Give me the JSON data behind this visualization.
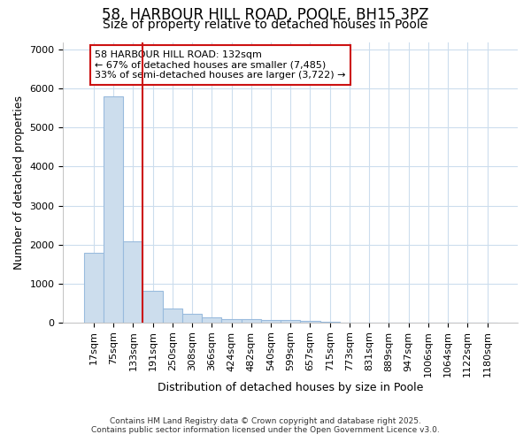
{
  "title1": "58, HARBOUR HILL ROAD, POOLE, BH15 3PZ",
  "title2": "Size of property relative to detached houses in Poole",
  "xlabel": "Distribution of detached houses by size in Poole",
  "ylabel": "Number of detached properties",
  "categories": [
    "17sqm",
    "75sqm",
    "133sqm",
    "191sqm",
    "250sqm",
    "308sqm",
    "366sqm",
    "424sqm",
    "482sqm",
    "540sqm",
    "599sqm",
    "657sqm",
    "715sqm",
    "773sqm",
    "831sqm",
    "889sqm",
    "947sqm",
    "1006sqm",
    "1064sqm",
    "1122sqm",
    "1180sqm"
  ],
  "values": [
    1780,
    5800,
    2080,
    820,
    350,
    220,
    120,
    80,
    75,
    70,
    55,
    30,
    20,
    0,
    0,
    0,
    0,
    0,
    0,
    0,
    0
  ],
  "bar_color": "#ccdded",
  "bar_edge_color": "#99bbdd",
  "highlight_index": 2,
  "highlight_color": "#cc1111",
  "annotation_text": "58 HARBOUR HILL ROAD: 132sqm\n← 67% of detached houses are smaller (7,485)\n33% of semi-detached houses are larger (3,722) →",
  "annotation_box_color": "#ffffff",
  "annotation_box_edge": "#cc1111",
  "ylim": [
    0,
    7200
  ],
  "yticks": [
    0,
    1000,
    2000,
    3000,
    4000,
    5000,
    6000,
    7000
  ],
  "bg_color": "#ffffff",
  "plot_bg_color": "#ffffff",
  "grid_color": "#ccdded",
  "footnote1": "Contains HM Land Registry data © Crown copyright and database right 2025.",
  "footnote2": "Contains public sector information licensed under the Open Government Licence v3.0.",
  "title_fontsize": 12,
  "subtitle_fontsize": 10,
  "axis_fontsize": 9,
  "tick_fontsize": 8
}
